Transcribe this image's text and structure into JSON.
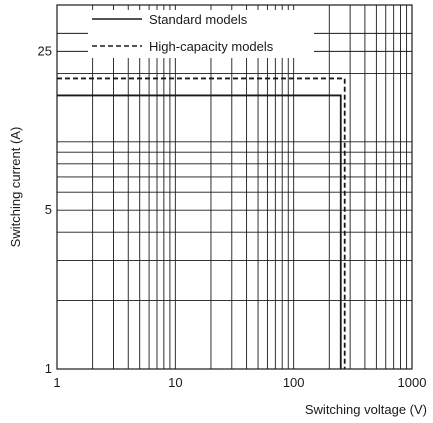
{
  "chart_data": {
    "type": "line",
    "title": "",
    "xlabel": "Switching voltage (V)",
    "ylabel": "Switching current (A)",
    "x_scale": "log",
    "y_scale": "log",
    "xlim": [
      1,
      1000
    ],
    "ylim": [
      1,
      40
    ],
    "x_ticks": [
      {
        "value": 1,
        "label": "1"
      },
      {
        "value": 10,
        "label": "10"
      },
      {
        "value": 100,
        "label": "100"
      },
      {
        "value": 1000,
        "label": "1000"
      }
    ],
    "y_ticks": [
      {
        "value": 1,
        "label": "1"
      },
      {
        "value": 5,
        "label": "5"
      },
      {
        "value": 25,
        "label": "25"
      }
    ],
    "x_grid": [
      2,
      3,
      4,
      5,
      6,
      7,
      8,
      9,
      10,
      20,
      30,
      40,
      50,
      60,
      70,
      80,
      90,
      100,
      200,
      300,
      400,
      500,
      600,
      700,
      800,
      900
    ],
    "y_grid": [
      2,
      3,
      4,
      5,
      6,
      7,
      8,
      9,
      10,
      20,
      25,
      30
    ],
    "grid": true,
    "legend": "top-left",
    "series": [
      {
        "name": "Standard models",
        "style": "solid",
        "points": [
          [
            1,
            16
          ],
          [
            250,
            16
          ],
          [
            250,
            1
          ]
        ]
      },
      {
        "name": "High-capacity models",
        "style": "dashed",
        "points": [
          [
            1,
            19
          ],
          [
            270,
            19
          ],
          [
            270,
            1
          ]
        ]
      }
    ]
  }
}
